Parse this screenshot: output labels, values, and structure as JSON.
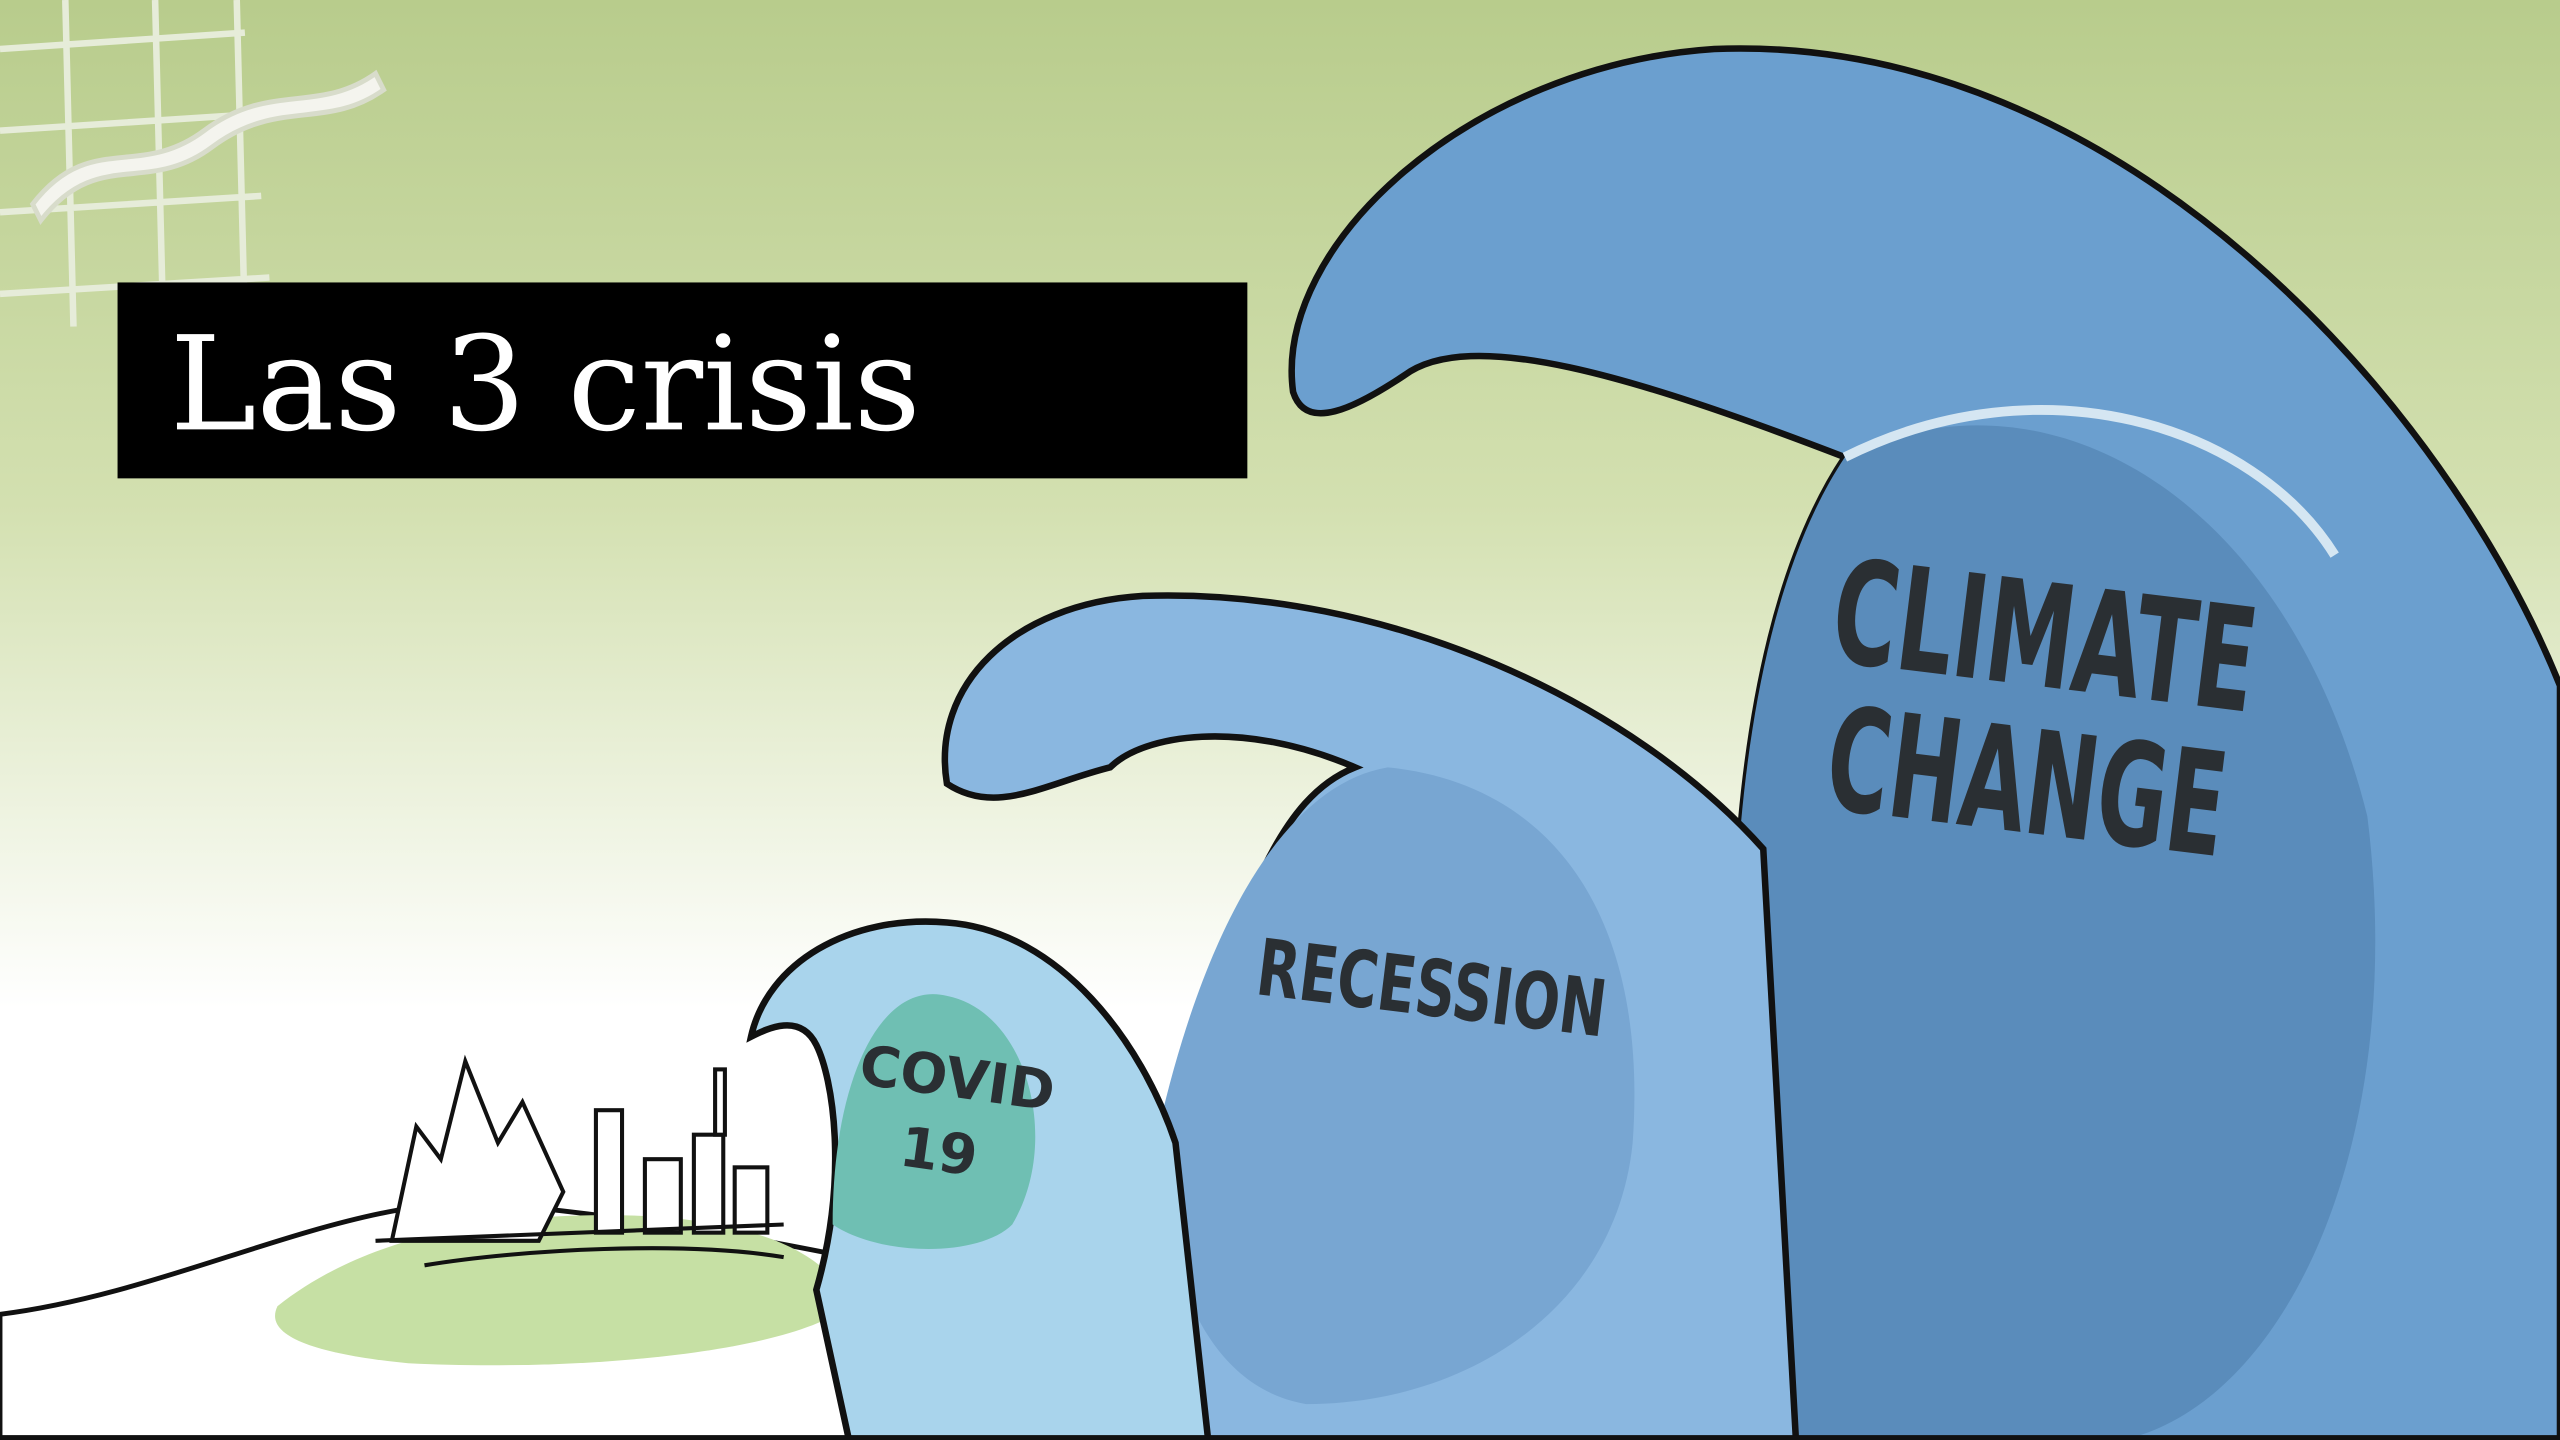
{
  "title": "Las 3 crisis",
  "waves": [
    {
      "label_lines": [
        "COVID",
        "19"
      ]
    },
    {
      "label_lines": [
        "RECESSION"
      ]
    },
    {
      "label_lines": [
        "CLIMATE",
        "CHANGE"
      ]
    }
  ]
}
